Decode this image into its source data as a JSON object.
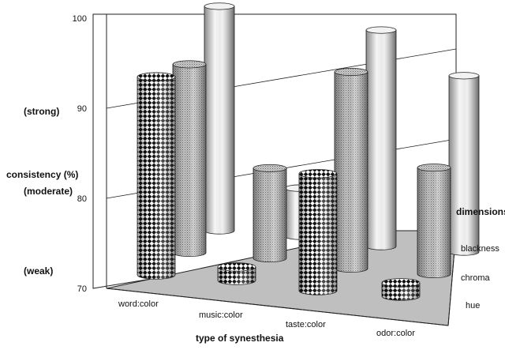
{
  "chart_data": {
    "type": "bar",
    "style": "3d-cylinder",
    "xlabel": "type of synesthesia",
    "ylabel": "consistency (%)",
    "zlabel": "dimensions",
    "ylim": [
      70,
      100
    ],
    "yticks": [
      "70",
      "80",
      "90",
      "100"
    ],
    "strength_labels": [
      "(strong)",
      "(moderate)",
      "(weak)"
    ],
    "categories": [
      "word:color",
      "music:color",
      "taste:color",
      "odor:color"
    ],
    "series": [
      {
        "name": "hue",
        "values": [
          92,
          71.5,
          83,
          71.5
        ],
        "pattern": "checker"
      },
      {
        "name": "chroma",
        "values": [
          93,
          81,
          94,
          83
        ],
        "pattern": "stipple"
      },
      {
        "name": "blackness",
        "values": [
          98,
          76,
          97,
          92
        ],
        "pattern": "plain"
      }
    ],
    "grid": true,
    "legend": "right depth axis"
  }
}
